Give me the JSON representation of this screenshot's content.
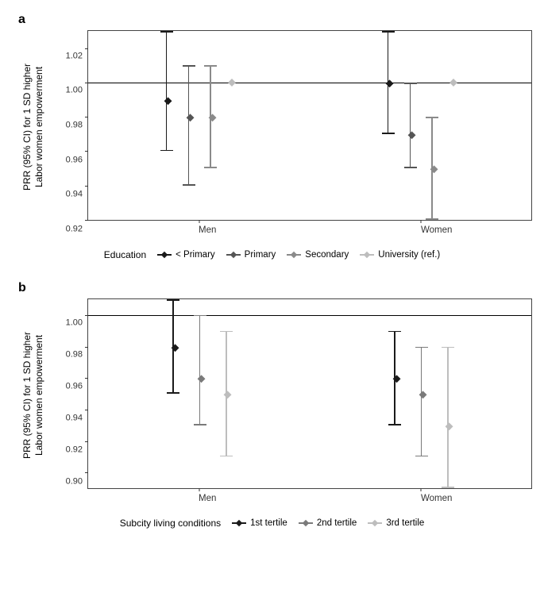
{
  "ylabel": "PRR (95% CI) for 1 SD higher\nLabor women empowerment",
  "x_categories": [
    "Men",
    "Women"
  ],
  "panelA": {
    "letter": "a",
    "ylim": [
      0.92,
      1.03
    ],
    "yticks": [
      0.92,
      0.94,
      0.96,
      0.98,
      1.0,
      1.02
    ],
    "refline": 1.0,
    "legend_title": "Education",
    "series": [
      {
        "label": "< Primary",
        "color": "#1a1a1a"
      },
      {
        "label": "Primary",
        "color": "#555555"
      },
      {
        "label": "Secondary",
        "color": "#8a8a8a"
      },
      {
        "label": "University (ref.)",
        "color": "#bdbdbd"
      }
    ],
    "groups": [
      {
        "x_label": "Men",
        "points": [
          {
            "est": 0.99,
            "lo": 0.96,
            "hi": 1.03,
            "color": "#1a1a1a"
          },
          {
            "est": 0.98,
            "lo": 0.94,
            "hi": 1.01,
            "color": "#555555"
          },
          {
            "est": 0.98,
            "lo": 0.95,
            "hi": 1.01,
            "color": "#8a8a8a"
          },
          {
            "est": 1.0,
            "ref": true,
            "color": "#bdbdbd"
          }
        ]
      },
      {
        "x_label": "Women",
        "points": [
          {
            "est": 1.0,
            "lo": 0.97,
            "hi": 1.03,
            "color": "#1a1a1a"
          },
          {
            "est": 0.97,
            "lo": 0.95,
            "hi": 1.0,
            "color": "#555555"
          },
          {
            "est": 0.95,
            "lo": 0.92,
            "hi": 0.98,
            "color": "#8a8a8a"
          },
          {
            "est": 1.0,
            "ref": true,
            "color": "#bdbdbd"
          }
        ]
      }
    ],
    "dodge_offsets_pct": [
      -7.5,
      -2.5,
      2.5,
      7.5
    ]
  },
  "panelB": {
    "letter": "b",
    "ylim": [
      0.89,
      1.01
    ],
    "yticks": [
      0.9,
      0.92,
      0.94,
      0.96,
      0.98,
      1.0
    ],
    "refline": 1.0,
    "legend_title": "Subcity  living  conditions",
    "series": [
      {
        "label": "1st tertile",
        "color": "#1a1a1a"
      },
      {
        "label": "2nd tertile",
        "color": "#7a7a7a"
      },
      {
        "label": "3rd tertile",
        "color": "#bdbdbd"
      }
    ],
    "groups": [
      {
        "x_label": "Men",
        "points": [
          {
            "est": 0.98,
            "lo": 0.95,
            "hi": 1.01,
            "color": "#1a1a1a"
          },
          {
            "est": 0.96,
            "lo": 0.93,
            "hi": 1.0,
            "color": "#7a7a7a"
          },
          {
            "est": 0.95,
            "lo": 0.91,
            "hi": 0.99,
            "color": "#bdbdbd"
          }
        ]
      },
      {
        "x_label": "Women",
        "points": [
          {
            "est": 0.96,
            "lo": 0.93,
            "hi": 0.99,
            "color": "#1a1a1a"
          },
          {
            "est": 0.95,
            "lo": 0.91,
            "hi": 0.98,
            "color": "#7a7a7a"
          },
          {
            "est": 0.93,
            "lo": 0.89,
            "hi": 0.98,
            "color": "#bdbdbd"
          }
        ]
      }
    ],
    "dodge_offsets_pct": [
      -6,
      0,
      6
    ]
  }
}
